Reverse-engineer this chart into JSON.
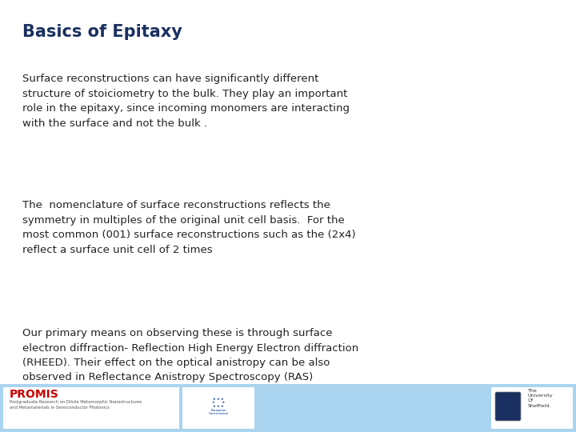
{
  "title": "Basics of Epitaxy",
  "title_color": "#1a3060",
  "title_fontsize": 15,
  "background_color": "#ffffff",
  "footer_color": "#aad4f0",
  "body_fontsize": 9.5,
  "body_color": "#222222",
  "font_family": "DejaVu Sans",
  "paragraphs": [
    "Surface reconstructions can have significantly different\nstructure of stoiciometry to the bulk. They play an important\nrole in the epitaxy, since incoming monomers are interacting\nwith the surface and not the bulk .",
    "The  nomenclature of surface reconstructions reflects the\nsymmetry in multiples of the original unit cell basis.  For the\nmost common (001) surface reconstructions such as the (2x4)\nreflect a surface unit cell of 2 times",
    "Our primary means on observing these is through surface\nelectron diffraction- Reflection High Energy Electron diffraction\n(RHEED). Their effect on the optical anistropy can be also\nobserved in Reflectance Anistropy Spectroscopy (RAS)"
  ],
  "promis_color": "#cc0000",
  "footer_subtext": "Postgraduate Research on Dilute Metamorphic Nanostructures\nand Metamaterials in Semiconductor Photonics"
}
